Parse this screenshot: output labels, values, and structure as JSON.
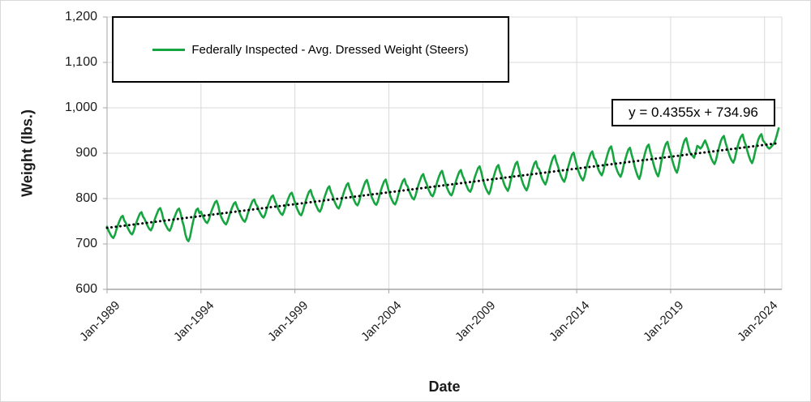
{
  "chart": {
    "y_axis": {
      "title": "Weight (lbs.)",
      "min": 600,
      "max": 1200,
      "step": 100,
      "ticks": [
        {
          "value": 600,
          "label": "600"
        },
        {
          "value": 700,
          "label": "700"
        },
        {
          "value": 800,
          "label": "800"
        },
        {
          "value": 900,
          "label": "900"
        },
        {
          "value": 1000,
          "label": "1,000"
        },
        {
          "value": 1100,
          "label": "1,100"
        },
        {
          "value": 1200,
          "label": "1,200"
        }
      ]
    },
    "x_axis": {
      "title": "Date",
      "tick_interval_months": 60,
      "ticks": [
        {
          "month_index": 0,
          "label": "Jan-1989"
        },
        {
          "month_index": 60,
          "label": "Jan-1994"
        },
        {
          "month_index": 120,
          "label": "Jan-1999"
        },
        {
          "month_index": 180,
          "label": "Jan-2004"
        },
        {
          "month_index": 240,
          "label": "Jan-2009"
        },
        {
          "month_index": 300,
          "label": "Jan-2014"
        },
        {
          "month_index": 360,
          "label": "Jan-2019"
        },
        {
          "month_index": 420,
          "label": "Jan-2024"
        }
      ]
    },
    "legend": {
      "label": "Federally Inspected - Avg. Dressed Weight (Steers)",
      "color": "#17a541"
    },
    "trendline_label": "y = 0.4355x + 734.96",
    "colors": {
      "series_green": "#17a541",
      "trendline": "#000000",
      "gridline": "#d9d9d9",
      "axis_line": "#a6a6a6",
      "text": "#1a1a1a"
    }
  },
  "chart_data": {
    "type": "line",
    "title": "",
    "xlabel": "Date",
    "ylabel": "Weight (lbs.)",
    "ylim": [
      600,
      1200
    ],
    "xlim": [
      "Jan-1989",
      "Dec-2024"
    ],
    "grid": true,
    "legend_position": "top-left-inside",
    "x_start": "1989-01",
    "frequency": "monthly",
    "series": [
      {
        "name": "Federally Inspected - Avg. Dressed Weight (Steers)",
        "color": "#17a541",
        "values": [
          738,
          729,
          722,
          716,
          713,
          720,
          732,
          742,
          751,
          759,
          762,
          752,
          746,
          737,
          730,
          724,
          721,
          728,
          740,
          750,
          759,
          767,
          770,
          760,
          755,
          746,
          739,
          733,
          730,
          737,
          749,
          759,
          768,
          776,
          779,
          769,
          754,
          745,
          738,
          732,
          729,
          736,
          748,
          758,
          767,
          775,
          778,
          768,
          751,
          740,
          722,
          710,
          706,
          715,
          733,
          750,
          764,
          775,
          778,
          768,
          771,
          762,
          755,
          749,
          746,
          753,
          765,
          775,
          784,
          792,
          795,
          785,
          768,
          759,
          752,
          746,
          743,
          750,
          762,
          772,
          781,
          789,
          792,
          782,
          774,
          765,
          758,
          752,
          749,
          756,
          768,
          778,
          787,
          795,
          798,
          788,
          783,
          774,
          767,
          761,
          758,
          765,
          777,
          787,
          796,
          804,
          807,
          797,
          789,
          780,
          773,
          767,
          764,
          771,
          783,
          793,
          802,
          810,
          813,
          803,
          792,
          781,
          773,
          766,
          763,
          771,
          784,
          796,
          806,
          815,
          819,
          807,
          800,
          789,
          781,
          774,
          771,
          779,
          792,
          804,
          814,
          823,
          827,
          815,
          807,
          796,
          788,
          781,
          778,
          786,
          799,
          811,
          821,
          830,
          834,
          822,
          814,
          803,
          795,
          788,
          785,
          793,
          806,
          818,
          828,
          837,
          841,
          829,
          815,
          804,
          796,
          789,
          786,
          794,
          807,
          819,
          829,
          838,
          842,
          830,
          816,
          805,
          797,
          790,
          787,
          795,
          808,
          820,
          830,
          839,
          843,
          831,
          827,
          816,
          808,
          801,
          798,
          806,
          819,
          831,
          841,
          850,
          854,
          842,
          834,
          823,
          815,
          808,
          805,
          813,
          826,
          838,
          848,
          857,
          861,
          849,
          836,
          825,
          817,
          810,
          807,
          815,
          828,
          840,
          850,
          859,
          863,
          851,
          844,
          833,
          825,
          818,
          815,
          823,
          836,
          848,
          858,
          867,
          871,
          859,
          844,
          832,
          822,
          815,
          810,
          819,
          835,
          848,
          860,
          870,
          874,
          860,
          851,
          839,
          829,
          822,
          817,
          826,
          842,
          855,
          867,
          877,
          881,
          867,
          852,
          840,
          830,
          823,
          818,
          827,
          843,
          856,
          868,
          878,
          882,
          868,
          865,
          853,
          843,
          836,
          831,
          840,
          856,
          869,
          881,
          891,
          895,
          881,
          871,
          859,
          849,
          842,
          837,
          846,
          862,
          875,
          887,
          897,
          901,
          887,
          874,
          862,
          852,
          845,
          840,
          849,
          865,
          878,
          890,
          900,
          904,
          890,
          885,
          873,
          863,
          856,
          851,
          860,
          876,
          889,
          901,
          911,
          915,
          901,
          882,
          870,
          860,
          853,
          848,
          857,
          873,
          886,
          898,
          908,
          912,
          898,
          886,
          871,
          859,
          849,
          843,
          855,
          875,
          891,
          905,
          915,
          919,
          904,
          892,
          877,
          865,
          855,
          849,
          861,
          881,
          897,
          911,
          921,
          925,
          910,
          900,
          885,
          873,
          863,
          857,
          869,
          889,
          905,
          919,
          929,
          933,
          918,
          904,
          898,
          894,
          890,
          902,
          916,
          914,
          910,
          914,
          922,
          928,
          920,
          910,
          898,
          888,
          881,
          876,
          885,
          901,
          914,
          926,
          934,
          938,
          924,
          913,
          901,
          891,
          884,
          879,
          888,
          904,
          917,
          929,
          937,
          941,
          927,
          918,
          905,
          893,
          884,
          878,
          888,
          904,
          918,
          930,
          938,
          942,
          928,
          924,
          918,
          913,
          910,
          913,
          917,
          921,
          930,
          942,
          955
        ]
      }
    ],
    "trendline": {
      "equation": "y = 0.4355x + 734.96",
      "slope": 0.4355,
      "intercept": 734.96,
      "x_is": "1-based month index from Jan-1989",
      "style": "dotted",
      "color": "#000000"
    }
  }
}
